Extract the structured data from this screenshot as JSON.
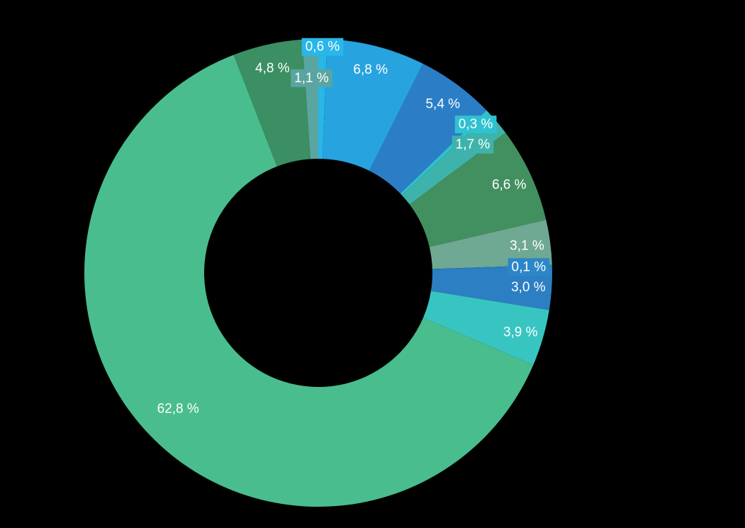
{
  "page": {
    "background_color": "#000000",
    "title": ""
  },
  "chart_data": {
    "type": "pie",
    "subtype": "donut",
    "title": "",
    "legend": "none",
    "unit": "%",
    "decimal_separator": ",",
    "background": "#000000",
    "label_color": "#ffffff",
    "center": [
      449,
      385
    ],
    "outer_radius": 330,
    "inner_radius": 161,
    "start_angle_deg": -90,
    "direction": "clockwise",
    "label_radius": 297,
    "label_radius_large": 275,
    "segments": [
      {
        "label": "0,6 %",
        "value": 0.6,
        "color": "#29b6e9",
        "badge": true,
        "label_r": 320
      },
      {
        "label": "6,8 %",
        "value": 6.8,
        "color": "#27a3e0",
        "badge": false
      },
      {
        "label": "5,4 %",
        "value": 5.4,
        "color": "#2b7ec6",
        "badge": false
      },
      {
        "label": "0,3 %",
        "value": 0.3,
        "color": "#2fc2d1",
        "badge": true,
        "label_r": 306
      },
      {
        "label": "1,7 %",
        "value": 1.7,
        "color": "#3eb3ab",
        "badge": true,
        "label_r": 284
      },
      {
        "label": "6,6 %",
        "value": 6.6,
        "color": "#42905f",
        "badge": false
      },
      {
        "label": "3,1 %",
        "value": 3.1,
        "color": "#6fa893",
        "badge": true
      },
      {
        "label": "0,1 %",
        "value": 0.1,
        "color": "#2d86c8",
        "badge": true
      },
      {
        "label": "3,0 %",
        "value": 3.0,
        "color": "#2c7fc3",
        "badge": false
      },
      {
        "label": "3,9 %",
        "value": 3.9,
        "color": "#38c5c2",
        "badge": false
      },
      {
        "label": "62,8 %",
        "value": 62.8,
        "color": "#49bd8e",
        "badge": false,
        "label_r": 275
      },
      {
        "label": "4,8 %",
        "value": 4.8,
        "color": "#3b8f62",
        "badge": false
      },
      {
        "label": "1,1 %",
        "value": 1.1,
        "color": "#5aa5a0",
        "badge": true,
        "label_r": 276
      }
    ]
  }
}
